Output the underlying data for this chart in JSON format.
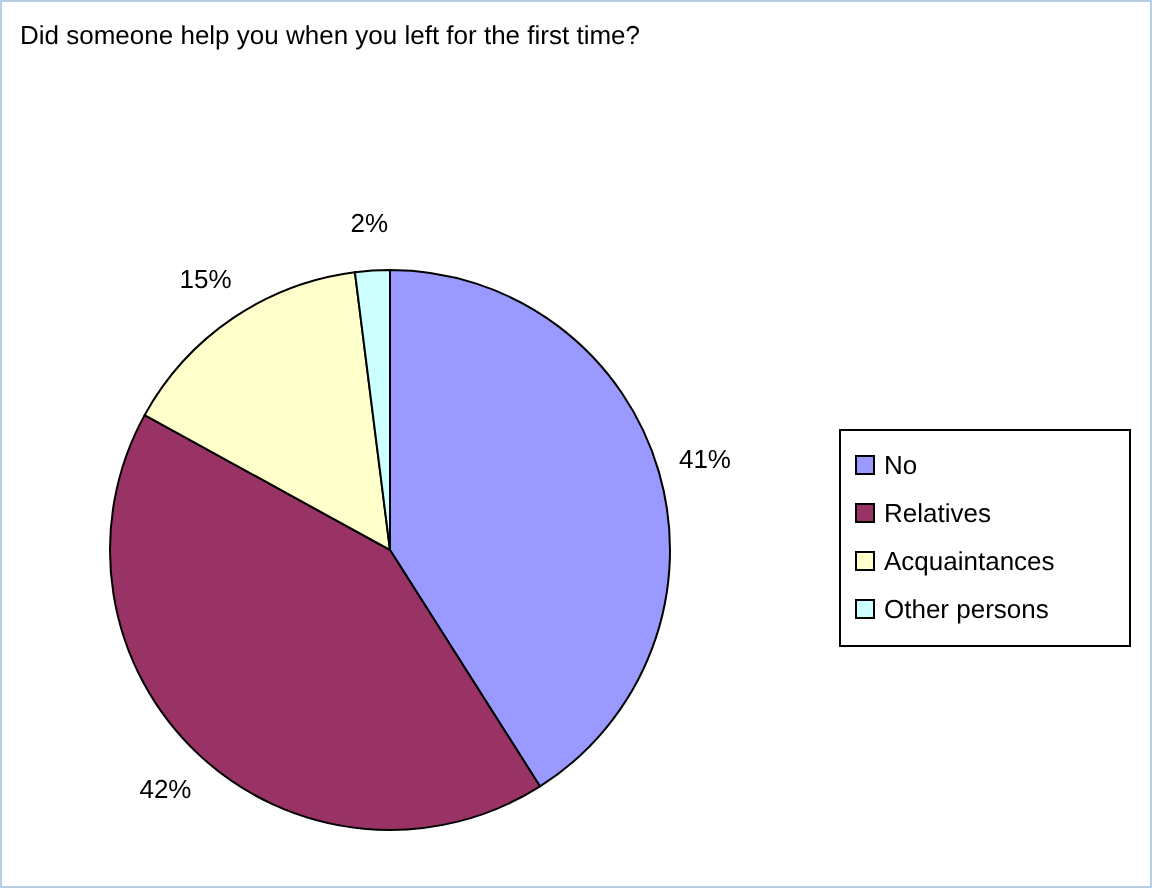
{
  "chart_data": {
    "type": "pie",
    "title": "Did someone help you when you left for the first time?",
    "categories": [
      "No",
      "Relatives",
      "Acquaintances",
      "Other persons"
    ],
    "values": [
      41,
      42,
      15,
      2
    ],
    "colors": [
      "#9999ff",
      "#993366",
      "#ffffcc",
      "#ccffff"
    ],
    "value_labels": [
      "41%",
      "42%",
      "15%",
      "2%"
    ],
    "legend": "right"
  }
}
